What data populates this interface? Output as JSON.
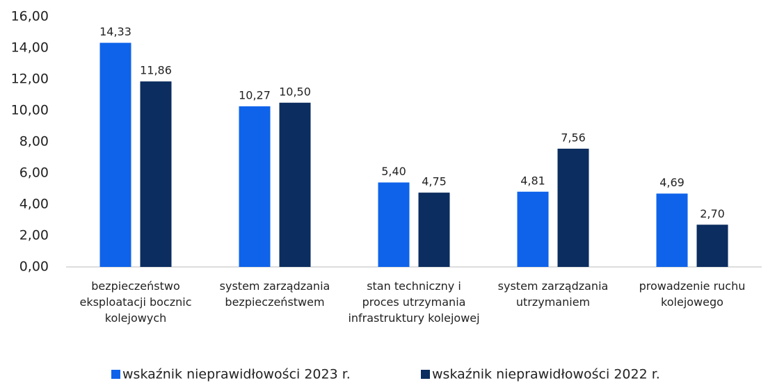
{
  "chart_data": {
    "type": "bar",
    "categories": [
      "bezpieczeństwo eksploatacji bocznic kolejowych",
      "system zarządzania bezpieczeństwem",
      "stan techniczny i proces utrzymania infrastruktury kolejowej",
      "system zarządzania utrzymaniem",
      "prowadzenie ruchu kolejowego"
    ],
    "series": [
      {
        "name": "wskaźnik nieprawidłowości 2023 r.",
        "color": "#0f63ea",
        "values": [
          14.33,
          10.27,
          5.4,
          4.81,
          4.69
        ],
        "value_labels": [
          "14,33",
          "10,27",
          "5,40",
          "4,81",
          "4,69"
        ]
      },
      {
        "name": "wskaźnik nieprawidłowości 2022 r.",
        "color": "#0b2d5f",
        "values": [
          11.86,
          10.5,
          4.75,
          7.56,
          2.7
        ],
        "value_labels": [
          "11,86",
          "10,50",
          "4,75",
          "7,56",
          "2,70"
        ]
      }
    ],
    "ylim": [
      0,
      16
    ],
    "yticks": [
      {
        "value": 0,
        "label": "0,00"
      },
      {
        "value": 2,
        "label": "2,00"
      },
      {
        "value": 4,
        "label": "4,00"
      },
      {
        "value": 6,
        "label": "6,00"
      },
      {
        "value": 8,
        "label": "8,00"
      },
      {
        "value": 10,
        "label": "10,00"
      },
      {
        "value": 12,
        "label": "12,00"
      },
      {
        "value": 14,
        "label": "14,00"
      },
      {
        "value": 16,
        "label": "16,00"
      }
    ],
    "grid": false
  }
}
